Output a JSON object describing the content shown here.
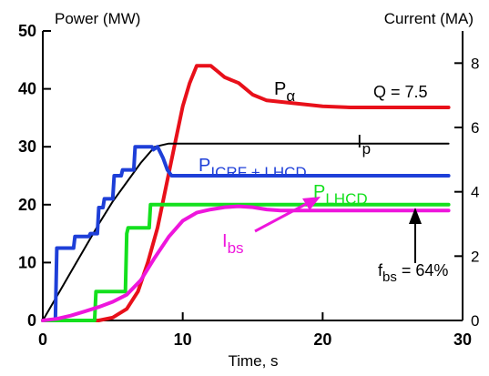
{
  "chart_data": {
    "type": "line",
    "ylabel_left": "Power (MW)",
    "ylabel_right": "Current (MA)",
    "xlabel": "Time, s",
    "xlim": [
      0,
      30
    ],
    "ylim_left": [
      0,
      50
    ],
    "ylim_right": [
      0,
      9
    ],
    "x_ticks": [
      0,
      10,
      20,
      30
    ],
    "x_tick_labels": [
      "0",
      "10",
      "20",
      "30"
    ],
    "y_left_ticks": [
      0,
      10,
      20,
      30,
      40,
      50
    ],
    "y_left_tick_labels": [
      "0",
      "10",
      "20",
      "30",
      "40",
      "50"
    ],
    "y_right_ticks": [
      0,
      2,
      4,
      6,
      8
    ],
    "y_right_tick_labels": [
      "0",
      "2",
      "4",
      "6",
      "8"
    ],
    "grid": false,
    "series": [
      {
        "name": "P_alpha",
        "axis": "left",
        "color": "#e8101a",
        "x": [
          0,
          2,
          4,
          5,
          6,
          6.8,
          7.5,
          8.2,
          8.8,
          9.4,
          10,
          10.5,
          11,
          11.5,
          12,
          12.5,
          13,
          14,
          15,
          16,
          18,
          20,
          22,
          25,
          29
        ],
        "y": [
          0,
          0,
          0,
          0.5,
          2,
          5,
          10,
          16,
          23,
          30,
          37,
          41,
          44,
          44,
          44,
          43,
          42,
          41,
          39,
          38,
          37.5,
          37,
          36.8,
          36.8,
          36.8
        ]
      },
      {
        "name": "I_p",
        "axis": "right",
        "color": "#000000",
        "x": [
          0,
          1,
          2,
          3,
          4,
          5,
          6,
          7,
          8,
          9,
          12,
          15,
          20,
          25,
          29
        ],
        "y": [
          0,
          0.75,
          1.5,
          2.25,
          3,
          3.7,
          4.3,
          4.9,
          5.4,
          5.5,
          5.5,
          5.5,
          5.5,
          5.5,
          5.5
        ]
      },
      {
        "name": "P_ICRF+LHCD",
        "axis": "left",
        "color": "#1e3fd8",
        "x": [
          0,
          0.9,
          1.0,
          2.2,
          2.3,
          3.3,
          3.4,
          3.9,
          4.0,
          4.3,
          4.4,
          5.0,
          5.1,
          5.6,
          5.7,
          6.5,
          6.6,
          7.8,
          7.9,
          8.2,
          8.6,
          8.9,
          9.2,
          12,
          15,
          20,
          25,
          29
        ],
        "y": [
          0,
          0,
          12.5,
          12.5,
          14.5,
          14.5,
          15,
          15,
          19.5,
          19.5,
          21,
          21,
          25,
          25,
          26,
          26,
          30,
          30,
          29.5,
          30,
          28,
          26,
          25,
          25,
          25,
          25,
          25,
          25
        ]
      },
      {
        "name": "P_LHCD",
        "axis": "left",
        "color": "#14e01e",
        "x": [
          0,
          3.7,
          3.8,
          5.9,
          6.0,
          6.1,
          7.6,
          7.7,
          12,
          15,
          20,
          25,
          29
        ],
        "y": [
          0,
          0,
          5,
          5,
          15,
          16,
          16,
          20,
          20,
          20,
          20,
          20,
          20
        ]
      },
      {
        "name": "I_bs",
        "axis": "right",
        "color": "#ee16dc",
        "x": [
          0,
          1,
          2,
          3,
          4,
          5,
          6,
          7,
          8,
          9,
          10,
          11,
          12,
          13,
          14,
          15,
          16,
          17,
          18,
          20,
          22,
          25,
          29
        ],
        "y": [
          0,
          0.05,
          0.15,
          0.28,
          0.42,
          0.58,
          0.8,
          1.25,
          1.95,
          2.6,
          3.1,
          3.35,
          3.45,
          3.52,
          3.55,
          3.52,
          3.45,
          3.42,
          3.42,
          3.42,
          3.42,
          3.42,
          3.42
        ]
      }
    ],
    "annotations": [
      {
        "base": "P",
        "sub": "α"
      },
      {
        "base": "I",
        "sub": "p"
      },
      {
        "base": "P",
        "sub": "ICRF + LHCD"
      },
      {
        "base": "P",
        "sub": "LHCD"
      },
      {
        "base": "I",
        "sub": "bs"
      },
      {
        "text": "Q = 7.5"
      },
      {
        "base": "f",
        "sub": "bs",
        "suffix": " = 64%"
      }
    ]
  }
}
